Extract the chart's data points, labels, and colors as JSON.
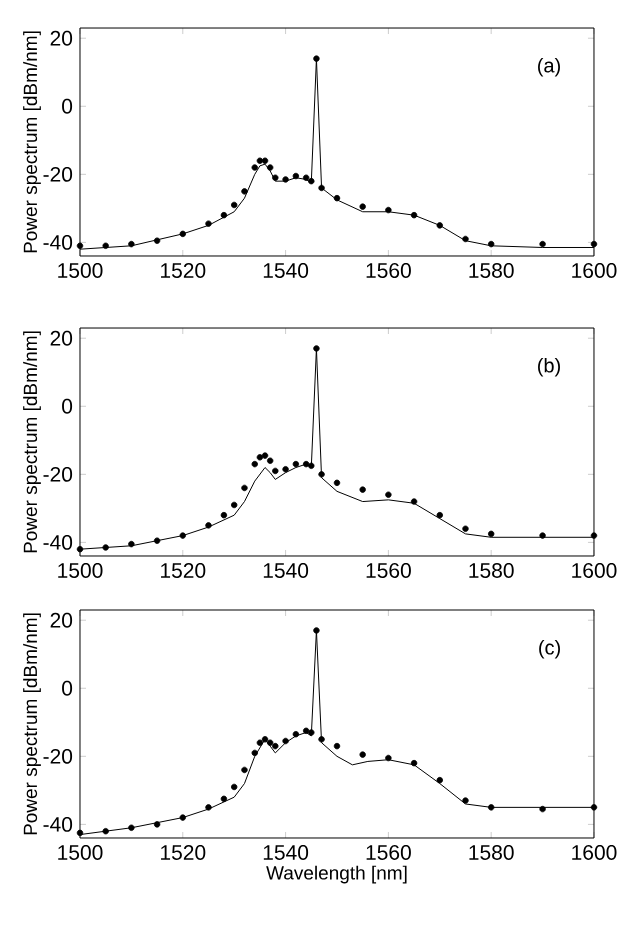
{
  "chart_data": [
    {
      "type": "line",
      "ylabel": "Power spectrum [dBm/nm]",
      "annotations": [
        "(a)"
      ],
      "xlim": [
        1500,
        1600
      ],
      "ylim": [
        -44,
        23
      ],
      "xticks": [
        1500,
        1520,
        1540,
        1560,
        1580,
        1600
      ],
      "yticks": [
        -40,
        -20,
        0,
        20
      ],
      "series": [
        {
          "type": "scatter",
          "marker": "circle",
          "color": "#000000",
          "x": [
            1500,
            1505,
            1510,
            1515,
            1520,
            1525,
            1528,
            1530,
            1532,
            1534,
            1535,
            1536,
            1537,
            1538,
            1540,
            1542,
            1544,
            1545,
            1546,
            1547,
            1550,
            1555,
            1560,
            1565,
            1570,
            1575,
            1580,
            1590,
            1600
          ],
          "values": [
            -41,
            -41,
            -40.5,
            -39.5,
            -37.5,
            -34.5,
            -32,
            -29,
            -25,
            -18,
            -16,
            -16,
            -18,
            -21,
            -21.5,
            -20.5,
            -21,
            -22,
            14,
            -24,
            -27,
            -29.5,
            -30.5,
            -32,
            -35,
            -39,
            -40.5,
            -40.5,
            -40.5
          ]
        },
        {
          "color": "#000000",
          "x": [
            1500,
            1510,
            1520,
            1525,
            1530,
            1532,
            1534,
            1535,
            1536,
            1537,
            1538,
            1540,
            1542,
            1544,
            1545,
            1546,
            1547,
            1550,
            1555,
            1560,
            1565,
            1570,
            1575,
            1580,
            1590,
            1600
          ],
          "values": [
            -42,
            -41,
            -37.5,
            -35,
            -31,
            -27,
            -20,
            -17.5,
            -17,
            -19,
            -22,
            -22,
            -21,
            -21.5,
            -22.5,
            14,
            -24,
            -27.5,
            -31,
            -31,
            -32,
            -35,
            -39.5,
            -41,
            -41.5,
            -41.5
          ]
        }
      ]
    },
    {
      "type": "line",
      "ylabel": "Power spectrum [dBm/nm]",
      "annotations": [
        "(b)"
      ],
      "xlim": [
        1500,
        1600
      ],
      "ylim": [
        -44,
        23
      ],
      "xticks": [
        1500,
        1520,
        1540,
        1560,
        1580,
        1600
      ],
      "yticks": [
        -40,
        -20,
        0,
        20
      ],
      "series": [
        {
          "type": "scatter",
          "marker": "circle",
          "color": "#000000",
          "x": [
            1500,
            1505,
            1510,
            1515,
            1520,
            1525,
            1528,
            1530,
            1532,
            1534,
            1535,
            1536,
            1537,
            1538,
            1540,
            1542,
            1544,
            1545,
            1546,
            1547,
            1550,
            1555,
            1560,
            1565,
            1570,
            1575,
            1580,
            1590,
            1600
          ],
          "values": [
            -42,
            -41.5,
            -40.5,
            -39.5,
            -38,
            -35,
            -32,
            -29,
            -24,
            -17,
            -15,
            -14.5,
            -16,
            -19,
            -18.5,
            -17,
            -17,
            -17.5,
            17,
            -20,
            -22.5,
            -24.5,
            -26,
            -28,
            -32,
            -36,
            -37.5,
            -38,
            -38
          ]
        },
        {
          "color": "#000000",
          "x": [
            1500,
            1510,
            1520,
            1525,
            1530,
            1532,
            1534,
            1536,
            1537,
            1538,
            1540,
            1542,
            1544,
            1545,
            1546,
            1547,
            1550,
            1555,
            1560,
            1565,
            1570,
            1575,
            1580,
            1590,
            1600
          ],
          "values": [
            -42,
            -41,
            -38,
            -35.5,
            -32,
            -28,
            -22,
            -18,
            -19.5,
            -21.5,
            -19.5,
            -18,
            -17,
            -18,
            17,
            -21,
            -25,
            -28,
            -27.5,
            -28.5,
            -33,
            -37.5,
            -38.5,
            -38.5,
            -38.5
          ]
        }
      ]
    },
    {
      "type": "line",
      "xlabel": "Wavelength [nm]",
      "ylabel": "Power spectrum [dBm/nm]",
      "annotations": [
        "(c)"
      ],
      "xlim": [
        1500,
        1600
      ],
      "ylim": [
        -44,
        23
      ],
      "xticks": [
        1500,
        1520,
        1540,
        1560,
        1580,
        1600
      ],
      "yticks": [
        -40,
        -20,
        0,
        20
      ],
      "series": [
        {
          "type": "scatter",
          "marker": "circle",
          "color": "#000000",
          "x": [
            1500,
            1505,
            1510,
            1515,
            1520,
            1525,
            1528,
            1530,
            1532,
            1534,
            1535,
            1536,
            1537,
            1538,
            1540,
            1542,
            1544,
            1545,
            1546,
            1547,
            1550,
            1555,
            1560,
            1565,
            1570,
            1575,
            1580,
            1590,
            1600
          ],
          "values": [
            -42.5,
            -42,
            -41,
            -40,
            -38,
            -35,
            -32.5,
            -29,
            -24,
            -19,
            -16,
            -15,
            -16,
            -17,
            -15.5,
            -13.5,
            -12.5,
            -13,
            17,
            -15,
            -17,
            -19.5,
            -20.5,
            -22,
            -27,
            -33,
            -35,
            -35.5,
            -35
          ]
        },
        {
          "color": "#000000",
          "x": [
            1500,
            1510,
            1520,
            1525,
            1530,
            1532,
            1534,
            1536,
            1537,
            1538,
            1540,
            1542,
            1544,
            1545,
            1546,
            1547,
            1550,
            1553,
            1556,
            1560,
            1565,
            1570,
            1575,
            1580,
            1590,
            1600
          ],
          "values": [
            -43,
            -41,
            -38,
            -35.5,
            -32,
            -28,
            -20,
            -15,
            -17,
            -19,
            -16,
            -14,
            -13,
            -14,
            17,
            -16,
            -20,
            -22.5,
            -21.5,
            -21,
            -22.5,
            -28,
            -34,
            -35,
            -35,
            -35
          ]
        }
      ]
    }
  ]
}
